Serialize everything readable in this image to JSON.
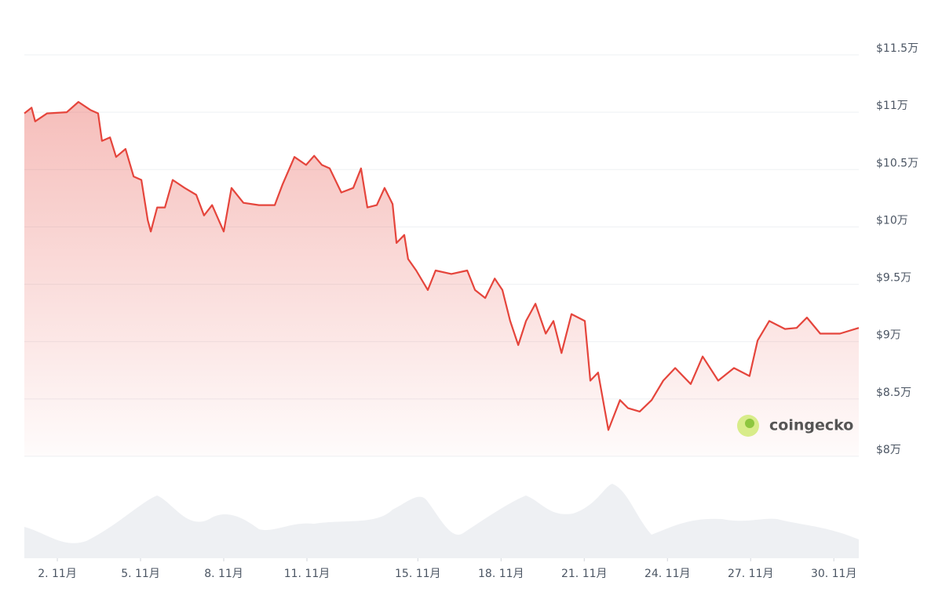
{
  "chart_data": {
    "type": "line",
    "watermark": "coingecko",
    "x": [
      0.81,
      1.07,
      1.2,
      1.63,
      2.34,
      2.76,
      3.19,
      3.47,
      3.61,
      3.9,
      4.12,
      4.46,
      4.75,
      5.03,
      5.26,
      5.37,
      5.6,
      5.88,
      6.16,
      6.59,
      7.01,
      7.29,
      7.58,
      8.0,
      8.28,
      8.71,
      9.27,
      9.84,
      10.12,
      10.55,
      10.97,
      11.26,
      11.54,
      11.82,
      12.24,
      12.67,
      12.95,
      13.18,
      13.52,
      13.8,
      14.09,
      14.23,
      14.51,
      14.65,
      14.94,
      15.36,
      15.64,
      16.21,
      16.78,
      17.06,
      17.43,
      17.77,
      18.05,
      18.33,
      18.62,
      18.9,
      19.24,
      19.61,
      19.89,
      20.18,
      20.54,
      21.02,
      21.22,
      21.5,
      21.87,
      22.29,
      22.58,
      23.0,
      23.43,
      23.85,
      24.28,
      24.84,
      25.27,
      25.83,
      26.4,
      26.96,
      27.25,
      27.67,
      28.24,
      28.66,
      29.03,
      29.51,
      30.22,
      30.9
    ],
    "values": [
      109900,
      110400,
      109200,
      109900,
      110000,
      110900,
      110200,
      109900,
      107500,
      107800,
      106100,
      106800,
      104400,
      104100,
      100600,
      99600,
      101700,
      101700,
      104100,
      103400,
      102800,
      101000,
      101900,
      99600,
      103400,
      102100,
      101900,
      101900,
      103700,
      106100,
      105400,
      106200,
      105400,
      105100,
      103000,
      103400,
      105100,
      101700,
      101900,
      103400,
      102000,
      98600,
      99300,
      97200,
      96200,
      94500,
      96200,
      95900,
      96200,
      94500,
      93800,
      95500,
      94500,
      91800,
      89700,
      91800,
      93300,
      90700,
      91800,
      89000,
      92400,
      91800,
      86600,
      87300,
      82300,
      84900,
      84200,
      83900,
      84900,
      86600,
      87700,
      86300,
      88700,
      86600,
      87700,
      87000,
      90100,
      91800,
      91100,
      91200,
      92100,
      90700,
      90700,
      91200
    ],
    "color": "#e5453c",
    "xlim": [
      0.81,
      30.9
    ],
    "xticks": [
      {
        "value": 2,
        "label": "2. 11月"
      },
      {
        "value": 5,
        "label": "5. 11月"
      },
      {
        "value": 8,
        "label": "8. 11月"
      },
      {
        "value": 11,
        "label": "11. 11月"
      },
      {
        "value": 15,
        "label": "15. 11月"
      },
      {
        "value": 18,
        "label": "18. 11月"
      },
      {
        "value": 21,
        "label": "21. 11月"
      },
      {
        "value": 24,
        "label": "24. 11月"
      },
      {
        "value": 27,
        "label": "27. 11月"
      },
      {
        "value": 30,
        "label": "30. 11月"
      }
    ],
    "ylim": [
      80000,
      115000
    ],
    "yticks": [
      {
        "value": 80000,
        "label": "$8万"
      },
      {
        "value": 85000,
        "label": "$8.5万"
      },
      {
        "value": 90000,
        "label": "$9万"
      },
      {
        "value": 95000,
        "label": "$9.5万"
      },
      {
        "value": 100000,
        "label": "$10万"
      },
      {
        "value": 105000,
        "label": "$10.5万"
      },
      {
        "value": 110000,
        "label": "$11万"
      },
      {
        "value": 115000,
        "label": "$11.5万"
      }
    ],
    "grid": true
  }
}
